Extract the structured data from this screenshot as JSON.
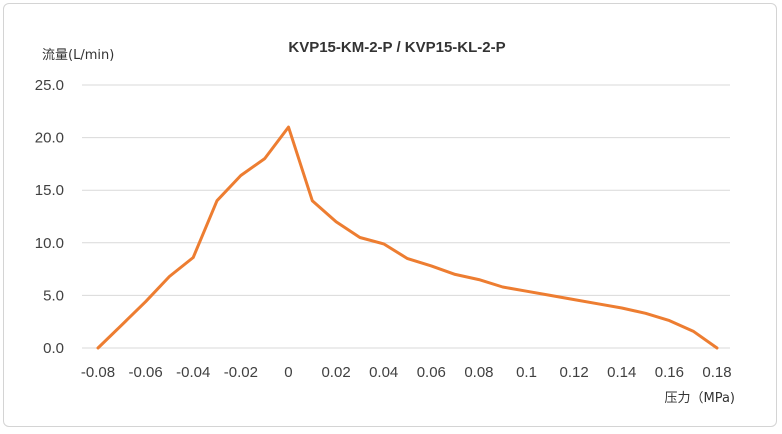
{
  "chart_data": {
    "type": "line",
    "title": "KVP15-KM-2-P / KVP15-KL-2-P",
    "ylabel": "流量(L/min)",
    "xlabel": "压力（MPa)",
    "xlim": [
      -0.08,
      0.18
    ],
    "ylim": [
      0,
      25
    ],
    "grid": true,
    "x_ticks": [
      "-0.08",
      "-0.06",
      "-0.04",
      "-0.02",
      "0",
      "0.02",
      "0.04",
      "0.06",
      "0.08",
      "0.1",
      "0.12",
      "0.14",
      "0.16",
      "0.18"
    ],
    "y_ticks": [
      "0.0",
      "5.0",
      "10.0",
      "15.0",
      "20.0",
      "25.0"
    ],
    "series": [
      {
        "color": "#ed7d31",
        "x": [
          -0.08,
          -0.07,
          -0.06,
          -0.05,
          -0.04,
          -0.03,
          -0.02,
          -0.01,
          0,
          0.01,
          0.02,
          0.03,
          0.04,
          0.05,
          0.06,
          0.07,
          0.08,
          0.09,
          0.1,
          0.11,
          0.12,
          0.13,
          0.14,
          0.15,
          0.16,
          0.17,
          0.18
        ],
        "y": [
          0.0,
          2.2,
          4.4,
          6.8,
          8.6,
          14.0,
          16.4,
          18.0,
          21.0,
          14.0,
          12.0,
          10.5,
          9.9,
          8.5,
          7.8,
          7.0,
          6.5,
          5.8,
          5.4,
          5.0,
          4.6,
          4.2,
          3.8,
          3.3,
          2.6,
          1.6,
          0.0
        ]
      }
    ]
  }
}
